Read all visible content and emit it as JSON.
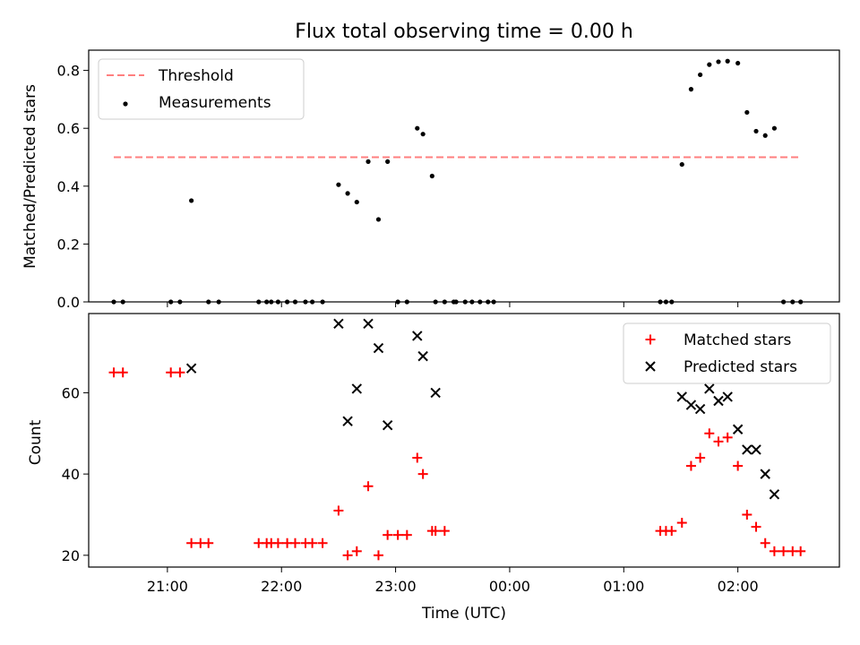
{
  "chart_data": [
    {
      "type": "scatter",
      "title": "Flux total observing time = 0.00 h",
      "xlabel": "",
      "ylabel": "Matched/Predicted stars",
      "xlim": [
        -3.69,
        2.89
      ],
      "ylim": [
        0,
        0.87
      ],
      "yticks": [
        0.0,
        0.2,
        0.4,
        0.6,
        0.8
      ],
      "ytick_labels": [
        "0.0",
        "0.2",
        "0.4",
        "0.6",
        "0.8"
      ],
      "legend_position": "upper-left",
      "threshold": {
        "name": "Threshold",
        "value": 0.5,
        "x_range": [
          -3.47,
          2.55
        ],
        "color": "#ff7f7f"
      },
      "series": [
        {
          "name": "Measurements",
          "color": "#000000",
          "x": [
            -3.47,
            -3.39,
            -2.97,
            -2.89,
            -2.79,
            -2.64,
            -2.55,
            -2.2,
            -2.13,
            -2.09,
            -2.03,
            -1.95,
            -1.88,
            -1.79,
            -1.73,
            -1.64,
            -1.5,
            -1.42,
            -1.34,
            -1.24,
            -1.15,
            -1.07,
            -0.98,
            -0.9,
            -0.81,
            -0.76,
            -0.68,
            -0.65,
            -0.57,
            -0.49,
            -0.47,
            -0.39,
            -0.33,
            -0.26,
            -0.19,
            -0.14,
            1.32,
            1.37,
            1.42,
            1.51,
            1.59,
            1.67,
            1.75,
            1.83,
            1.91,
            2.0,
            2.08,
            2.16,
            2.24,
            2.32,
            2.4,
            2.48,
            2.55
          ],
          "y": [
            0,
            0,
            0,
            0,
            0.35,
            0,
            0,
            0,
            0,
            0,
            0,
            0,
            0,
            0,
            0,
            0,
            0.405,
            0.375,
            0.345,
            0.485,
            0.285,
            0.485,
            0,
            0,
            0.6,
            0.58,
            0.435,
            0,
            0,
            0,
            0,
            0,
            0,
            0,
            0,
            0,
            0,
            0,
            0,
            0.475,
            0.735,
            0.785,
            0.82,
            0.83,
            0.832,
            0.825,
            0.655,
            0.59,
            0.575,
            0.6,
            0,
            0,
            0
          ]
        }
      ]
    },
    {
      "type": "scatter",
      "title": "",
      "xlabel": "Time (UTC)",
      "ylabel": "Count",
      "xlim": [
        -3.69,
        2.89
      ],
      "ylim": [
        17.1,
        79.5
      ],
      "yticks": [
        20,
        40,
        60
      ],
      "ytick_labels": [
        "20",
        "40",
        "60"
      ],
      "xticks": [
        -3,
        -2,
        -1,
        0,
        1,
        2
      ],
      "xtick_labels": [
        "21:00",
        "22:00",
        "23:00",
        "00:00",
        "01:00",
        "02:00"
      ],
      "legend_position": "upper-right",
      "series": [
        {
          "name": "Matched stars",
          "marker": "+",
          "color": "#ff0000",
          "x": [
            -3.47,
            -3.39,
            -2.97,
            -2.89,
            -2.79,
            -2.71,
            -2.64,
            -2.2,
            -2.13,
            -2.09,
            -2.03,
            -1.95,
            -1.88,
            -1.79,
            -1.73,
            -1.64,
            -1.5,
            -1.42,
            -1.34,
            -1.24,
            -1.15,
            -1.07,
            -0.98,
            -0.9,
            -0.81,
            -0.76,
            -0.68,
            -0.65,
            -0.57,
            1.32,
            1.37,
            1.42,
            1.51,
            1.59,
            1.67,
            1.75,
            1.83,
            1.91,
            2.0,
            2.08,
            2.16,
            2.24,
            2.32,
            2.4,
            2.48,
            2.55
          ],
          "y": [
            65,
            65,
            65,
            65,
            23,
            23,
            23,
            23,
            23,
            23,
            23,
            23,
            23,
            23,
            23,
            23,
            31,
            20,
            21,
            37,
            20,
            25,
            25,
            25,
            44,
            40,
            26,
            26,
            26,
            26,
            26,
            26,
            28,
            42,
            44,
            50,
            48,
            49,
            42,
            30,
            27,
            23,
            21,
            21,
            21,
            21
          ]
        },
        {
          "name": "Predicted stars",
          "marker": "x",
          "color": "#000000",
          "x": [
            -2.79,
            -1.5,
            -1.42,
            -1.34,
            -1.24,
            -1.15,
            -1.07,
            -0.81,
            -0.76,
            -0.65,
            1.51,
            1.59,
            1.67,
            1.75,
            1.83,
            1.91,
            2.0,
            2.08,
            2.16,
            2.24,
            2.32
          ],
          "y": [
            66,
            77,
            53,
            61,
            77,
            71,
            52,
            74,
            69,
            60,
            59,
            57,
            56,
            61,
            58,
            59,
            51,
            46,
            46,
            40,
            35
          ]
        }
      ]
    }
  ]
}
